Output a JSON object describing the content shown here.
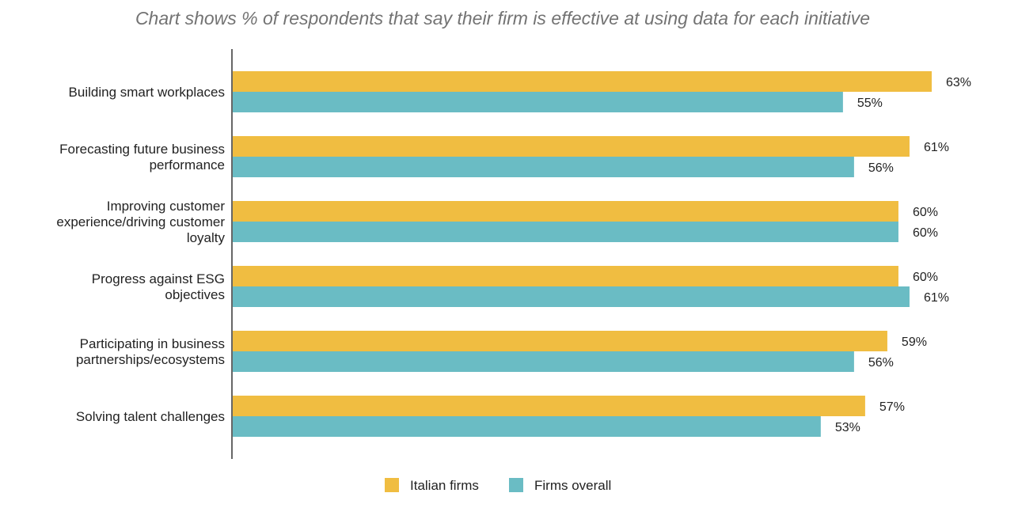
{
  "chart_data": {
    "type": "bar",
    "orientation": "horizontal",
    "title": "Chart shows % of respondents that say their firm is effective at using data for each initiative",
    "categories": [
      "Building smart workplaces",
      "Forecasting future business performance",
      "Improving customer experience/driving customer loyalty",
      "Progress against ESG objectives",
      "Participating in business partnerships/ecosystems",
      "Solving talent challenges"
    ],
    "category_label_lines": [
      [
        "Building smart workplaces"
      ],
      [
        "Forecasting future business",
        "performance"
      ],
      [
        "Improving customer",
        "experience/driving customer",
        "loyalty"
      ],
      [
        "Progress against ESG",
        "objectives"
      ],
      [
        "Participating in business",
        "partnerships/ecosystems"
      ],
      [
        "Solving talent challenges"
      ]
    ],
    "series": [
      {
        "name": "Italian firms",
        "color": "#f0bd41",
        "values": [
          63,
          61,
          60,
          60,
          59,
          57
        ],
        "labels": [
          "63%",
          "61%",
          "60%",
          "60%",
          "59%",
          "57%"
        ]
      },
      {
        "name": "Firms overall",
        "color": "#6abcc4",
        "values": [
          55,
          56,
          60,
          61,
          56,
          53
        ],
        "labels": [
          "55%",
          "56%",
          "60%",
          "61%",
          "56%",
          "53%"
        ]
      }
    ],
    "xlim": [
      0,
      63
    ],
    "xlabel": "",
    "ylabel": "",
    "grid": false,
    "legend_position": "bottom-center"
  },
  "colors": {
    "title": "#737373",
    "axis": "#333333",
    "text": "#222222"
  }
}
